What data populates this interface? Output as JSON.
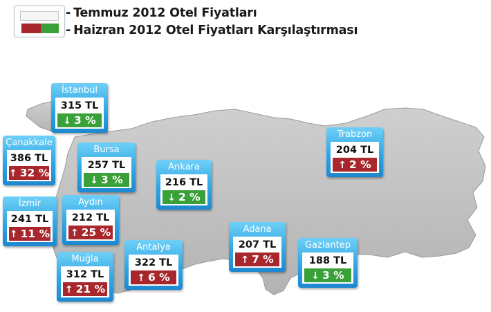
{
  "legend": {
    "line1": "Temmuz 2012 Otel Fiyatları",
    "line2": "Haizran 2012 Otel Fiyatları Karşılaştırması",
    "dash": "-"
  },
  "colors": {
    "up": "#a8272d",
    "down": "#3aa03a",
    "map_fill": "#c2c2c2",
    "card_blue": "#2fa6e4"
  },
  "cities": [
    {
      "id": "istanbul",
      "name": "İstanbul",
      "price": "315 TL",
      "arrow": "↓",
      "change": "3 %",
      "trend": "down"
    },
    {
      "id": "canakkale",
      "name": "Çanakkale",
      "price": "386 TL",
      "arrow": "↑",
      "change": "32 %",
      "trend": "up"
    },
    {
      "id": "bursa",
      "name": "Bursa",
      "price": "257 TL",
      "arrow": "↓",
      "change": "3 %",
      "trend": "down"
    },
    {
      "id": "ankara",
      "name": "Ankara",
      "price": "216 TL",
      "arrow": "↓",
      "change": "2 %",
      "trend": "down"
    },
    {
      "id": "trabzon",
      "name": "Trabzon",
      "price": "204 TL",
      "arrow": "↑",
      "change": "2 %",
      "trend": "up"
    },
    {
      "id": "izmir",
      "name": "İzmir",
      "price": "241 TL",
      "arrow": "↑",
      "change": "11 %",
      "trend": "up"
    },
    {
      "id": "aydin",
      "name": "Aydın",
      "price": "212 TL",
      "arrow": "↑",
      "change": "25 %",
      "trend": "up"
    },
    {
      "id": "mugla",
      "name": "Muğla",
      "price": "312 TL",
      "arrow": "↑",
      "change": "21 %",
      "trend": "up"
    },
    {
      "id": "antalya",
      "name": "Antalya",
      "price": "322 TL",
      "arrow": "↑",
      "change": "6 %",
      "trend": "up"
    },
    {
      "id": "adana",
      "name": "Adana",
      "price": "207 TL",
      "arrow": "↑",
      "change": "7 %",
      "trend": "up"
    },
    {
      "id": "gaziantep",
      "name": "Gaziantep",
      "price": "188 TL",
      "arrow": "↓",
      "change": "3 %",
      "trend": "down"
    }
  ]
}
